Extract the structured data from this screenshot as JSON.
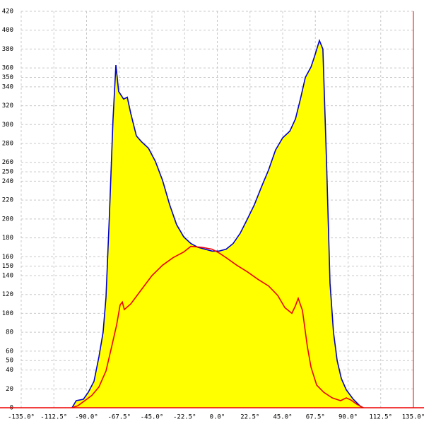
{
  "chart_data": {
    "type": "area",
    "xlim": [
      -135,
      135
    ],
    "xticks": [
      {
        "value": -135,
        "label": "-135.0°"
      },
      {
        "value": -112.5,
        "label": "-112.5°"
      },
      {
        "value": -90,
        "label": "-90.0°"
      },
      {
        "value": -67.5,
        "label": "-67.5°"
      },
      {
        "value": -45,
        "label": "-45.0°"
      },
      {
        "value": -22.5,
        "label": "-22.5°"
      },
      {
        "value": 0,
        "label": "0.0°"
      },
      {
        "value": 22.5,
        "label": "22.5°"
      },
      {
        "value": 45,
        "label": "45.0°"
      },
      {
        "value": 67.5,
        "label": "67.5°"
      },
      {
        "value": 90,
        "label": "90.0°"
      },
      {
        "value": 112.5,
        "label": "112.5°"
      },
      {
        "value": 135,
        "label": "135.0°"
      }
    ],
    "ylim": [
      0,
      420
    ],
    "yticks": [
      0,
      20,
      40,
      50,
      60,
      80,
      100,
      120,
      140,
      150,
      160,
      180,
      200,
      220,
      240,
      250,
      260,
      280,
      300,
      320,
      340,
      350,
      360,
      380,
      400,
      420
    ],
    "grid": true,
    "series": [
      {
        "color": "#0000cc",
        "fill": "#ffff00",
        "x": [
          -100,
          -97.1,
          -92.2,
          -88.8,
          -84.9,
          -81.5,
          -78.6,
          -76.6,
          -74.2,
          -71.8,
          -69.8,
          -67.9,
          -64.5,
          -62,
          -59.6,
          -55.7,
          -52.3,
          -47.4,
          -42.6,
          -37.7,
          -32.8,
          -28,
          -23.1,
          -18.2,
          -13.4,
          -8.5,
          -3.6,
          1.2,
          6.1,
          10.9,
          15.8,
          20.7,
          25.5,
          30.4,
          35.3,
          40.1,
          45,
          49.9,
          53.8,
          57.2,
          60.6,
          64.5,
          66.9,
          70.3,
          72.7,
          75.2,
          77.6,
          80,
          82.5,
          85.4,
          88.8,
          93.6,
          98.5,
          100.5
        ],
        "values": [
          0,
          7.5,
          9,
          16.5,
          28,
          54,
          80,
          117,
          207,
          305,
          363,
          335,
          327,
          329,
          312,
          288,
          282,
          275,
          261,
          241,
          215,
          194,
          181,
          174,
          170,
          168,
          166,
          166,
          168,
          174,
          185,
          200,
          215,
          234,
          252,
          273,
          286,
          293,
          306,
          327,
          350,
          361,
          372,
          389,
          380,
          260,
          132,
          80,
          50,
          31,
          19,
          9,
          1.5,
          0
        ]
      },
      {
        "color": "#ee0000",
        "x": [
          -100,
          -96.1,
          -91.2,
          -86.4,
          -81.5,
          -76.6,
          -72.7,
          -69.3,
          -66.9,
          -65.4,
          -64,
          -59.6,
          -52.3,
          -45,
          -37.7,
          -30.4,
          -23.1,
          -18.2,
          -10.9,
          -3.6,
          1.2,
          6.1,
          13.4,
          20.7,
          28,
          35.3,
          41.6,
          46.5,
          51.3,
          53.8,
          55.7,
          58.6,
          62,
          64.5,
          68.4,
          73.2,
          79.1,
          84.9,
          88.8,
          92.2,
          96.1,
          100.5
        ],
        "values": [
          0,
          2,
          7.5,
          13,
          22,
          39,
          65,
          88,
          109,
          112,
          104,
          110,
          125,
          140,
          151,
          159,
          165,
          171,
          170,
          168,
          164,
          159,
          151,
          144,
          136,
          129,
          119,
          106,
          100,
          108,
          116,
          103,
          65,
          43,
          24,
          16.5,
          10.5,
          7.5,
          10.5,
          8,
          3.7,
          0
        ]
      }
    ]
  }
}
